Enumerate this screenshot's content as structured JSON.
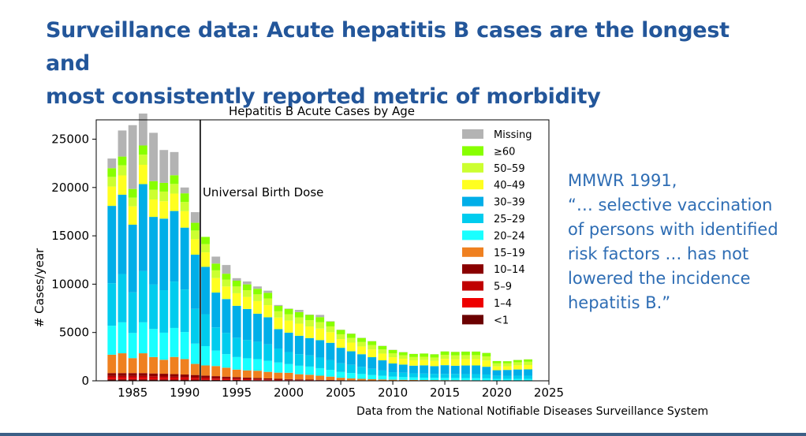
{
  "slide": {
    "title_line1": "Surveillance data: Acute hepatitis B cases are the longest and",
    "title_line2": "most consistently reported metric of morbidity",
    "title_color": "#23569a",
    "quote_lines": [
      "MMWR 1991,",
      "“… selective vaccination",
      "of persons with identified",
      "risk factors … has not",
      "lowered the incidence",
      "hepatitis B.”"
    ],
    "quote_color": "#2e6db4",
    "source": "Data from the National Notifiable Diseases Surveillance System"
  },
  "chart_data": {
    "type": "bar",
    "stacked": true,
    "title": "Hepatitis B Acute Cases by Age",
    "xlabel": "",
    "ylabel": "# Cases/year",
    "xlim": [
      1981.5,
      2025
    ],
    "ylim": [
      0,
      27000
    ],
    "xticks": [
      1985,
      1990,
      1995,
      2000,
      2005,
      2010,
      2015,
      2020,
      2025
    ],
    "yticks": [
      0,
      5000,
      10000,
      15000,
      20000,
      25000
    ],
    "grid": false,
    "legend": "top-right",
    "x": [
      1983,
      1984,
      1985,
      1986,
      1987,
      1988,
      1989,
      1990,
      1991,
      1992,
      1993,
      1994,
      1995,
      1996,
      1997,
      1998,
      1999,
      2000,
      2001,
      2002,
      2003,
      2004,
      2005,
      2006,
      2007,
      2008,
      2009,
      2010,
      2011,
      2012,
      2013,
      2014,
      2015,
      2016,
      2017,
      2018,
      2019,
      2020,
      2021,
      2022,
      2023
    ],
    "series": [
      {
        "name": "<1",
        "color": "#6b0000",
        "values": [
          150,
          150,
          150,
          150,
          140,
          140,
          130,
          130,
          120,
          110,
          100,
          90,
          80,
          70,
          60,
          50,
          40,
          30,
          30,
          25,
          20,
          15,
          12,
          10,
          8,
          6,
          5,
          4,
          4,
          3,
          3,
          3,
          3,
          2,
          2,
          2,
          2,
          2,
          2,
          2,
          2
        ]
      },
      {
        "name": "1–4",
        "color": "#ee0000",
        "values": [
          150,
          150,
          150,
          150,
          140,
          130,
          120,
          110,
          100,
          90,
          80,
          70,
          60,
          50,
          45,
          40,
          35,
          30,
          25,
          20,
          15,
          12,
          10,
          8,
          6,
          5,
          4,
          4,
          3,
          3,
          3,
          3,
          3,
          3,
          3,
          3,
          3,
          2,
          2,
          2,
          2
        ]
      },
      {
        "name": "5–9",
        "color": "#c00000",
        "values": [
          200,
          200,
          200,
          200,
          190,
          180,
          170,
          160,
          150,
          130,
          110,
          100,
          90,
          80,
          70,
          60,
          50,
          40,
          35,
          30,
          25,
          20,
          15,
          12,
          10,
          8,
          6,
          5,
          5,
          4,
          4,
          4,
          4,
          4,
          4,
          3,
          3,
          3,
          3,
          3,
          3
        ]
      },
      {
        "name": "10–14",
        "color": "#8a0000",
        "values": [
          300,
          300,
          300,
          300,
          290,
          280,
          270,
          250,
          230,
          210,
          190,
          170,
          150,
          130,
          110,
          95,
          80,
          70,
          60,
          50,
          40,
          35,
          30,
          25,
          20,
          16,
          13,
          10,
          9,
          8,
          8,
          8,
          8,
          8,
          8,
          7,
          7,
          6,
          6,
          6,
          6
        ]
      },
      {
        "name": "15–19",
        "color": "#ef8020",
        "values": [
          1900,
          2050,
          1550,
          2050,
          1700,
          1450,
          1780,
          1600,
          1150,
          1050,
          1050,
          930,
          780,
          750,
          760,
          680,
          640,
          660,
          530,
          500,
          430,
          350,
          250,
          200,
          160,
          130,
          110,
          90,
          80,
          70,
          60,
          55,
          50,
          45,
          40,
          35,
          30,
          25,
          25,
          20,
          20
        ]
      },
      {
        "name": "20–24",
        "color": "#19ffff",
        "values": [
          3000,
          3200,
          2600,
          3200,
          2900,
          2800,
          3000,
          2800,
          2100,
          2000,
          1600,
          1400,
          1300,
          1250,
          1200,
          1150,
          1050,
          900,
          880,
          850,
          780,
          700,
          600,
          550,
          500,
          430,
          380,
          310,
          280,
          260,
          250,
          240,
          230,
          230,
          220,
          220,
          210,
          150,
          160,
          160,
          160
        ]
      },
      {
        "name": "25–29",
        "color": "#00ccee",
        "values": [
          4400,
          5000,
          4200,
          5300,
          4600,
          4400,
          4800,
          4400,
          3600,
          3300,
          2400,
          2200,
          2000,
          1900,
          1800,
          1700,
          1450,
          1250,
          1200,
          1150,
          1100,
          1000,
          900,
          850,
          750,
          650,
          550,
          470,
          450,
          420,
          420,
          410,
          420,
          420,
          410,
          420,
          400,
          330,
          330,
          340,
          340
        ]
      },
      {
        "name": "30–39",
        "color": "#00aee8",
        "values": [
          8000,
          8200,
          7000,
          9000,
          7000,
          7400,
          7300,
          6400,
          5600,
          4900,
          3600,
          3500,
          3300,
          3200,
          2900,
          2800,
          2000,
          2000,
          1900,
          1800,
          1800,
          1800,
          1600,
          1400,
          1300,
          1200,
          1050,
          900,
          850,
          800,
          850,
          800,
          900,
          850,
          900,
          900,
          800,
          580,
          600,
          640,
          650
        ]
      },
      {
        "name": "40–49",
        "color": "#ffff20",
        "values": [
          2000,
          2000,
          1900,
          2000,
          1800,
          1800,
          1800,
          1700,
          1600,
          1500,
          1500,
          1300,
          1300,
          1250,
          1300,
          1250,
          1200,
          1250,
          1250,
          1200,
          1200,
          1100,
          900,
          900,
          800,
          800,
          700,
          650,
          600,
          550,
          550,
          550,
          650,
          650,
          650,
          650,
          650,
          400,
          380,
          430,
          450
        ]
      },
      {
        "name": "50–59",
        "color": "#ccff30",
        "values": [
          1000,
          1050,
          900,
          1050,
          1000,
          1000,
          1000,
          950,
          900,
          850,
          800,
          700,
          700,
          700,
          700,
          700,
          650,
          650,
          650,
          650,
          650,
          600,
          500,
          480,
          460,
          450,
          430,
          410,
          360,
          340,
          340,
          340,
          420,
          420,
          420,
          420,
          420,
          310,
          300,
          320,
          340
        ]
      },
      {
        "name": "≥60",
        "color": "#88ff00",
        "values": [
          900,
          900,
          900,
          950,
          900,
          900,
          900,
          900,
          800,
          750,
          700,
          620,
          600,
          600,
          580,
          580,
          550,
          560,
          550,
          540,
          530,
          500,
          450,
          440,
          420,
          400,
          360,
          340,
          320,
          320,
          330,
          330,
          350,
          360,
          360,
          360,
          360,
          230,
          220,
          230,
          240
        ]
      },
      {
        "name": "Missing",
        "color": "#b3b3b3",
        "values": [
          1000,
          2700,
          6600,
          3300,
          5000,
          3400,
          2400,
          600,
          1100,
          0,
          720,
          900,
          260,
          300,
          240,
          220,
          100,
          40,
          230,
          40,
          230,
          40,
          20,
          20,
          20,
          20,
          20,
          20,
          20,
          10,
          10,
          10,
          10,
          10,
          10,
          10,
          10,
          10,
          10,
          10,
          10
        ]
      }
    ],
    "annotations": [
      {
        "x": 1991.5,
        "type": "vertical-line",
        "color": "#000000",
        "label": "Universal Birth Dose"
      }
    ]
  }
}
